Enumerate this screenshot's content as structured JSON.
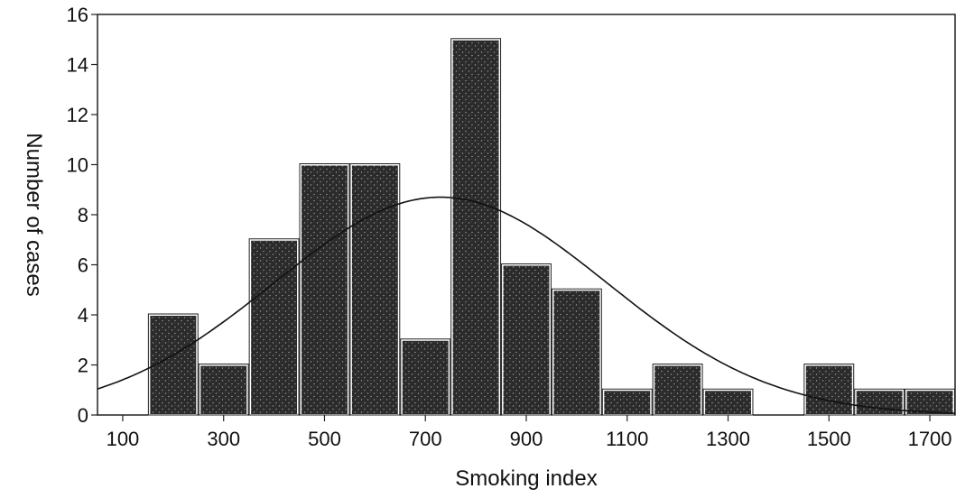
{
  "chart_data": {
    "type": "bar",
    "xlabel": "Smoking index",
    "ylabel": "Number of cases",
    "xlim": [
      50,
      1750
    ],
    "ylim": [
      0,
      16
    ],
    "x_ticks": [
      100,
      300,
      500,
      700,
      900,
      1100,
      1300,
      1500,
      1700
    ],
    "y_ticks": [
      0,
      2,
      4,
      6,
      8,
      10,
      12,
      14,
      16
    ],
    "bin_width": 100,
    "bins": [
      {
        "x0": 150,
        "x1": 250,
        "value": 4
      },
      {
        "x0": 250,
        "x1": 350,
        "value": 2
      },
      {
        "x0": 350,
        "x1": 450,
        "value": 7
      },
      {
        "x0": 450,
        "x1": 550,
        "value": 10
      },
      {
        "x0": 550,
        "x1": 650,
        "value": 10
      },
      {
        "x0": 650,
        "x1": 750,
        "value": 3
      },
      {
        "x0": 750,
        "x1": 850,
        "value": 15
      },
      {
        "x0": 850,
        "x1": 950,
        "value": 6
      },
      {
        "x0": 950,
        "x1": 1050,
        "value": 5
      },
      {
        "x0": 1050,
        "x1": 1150,
        "value": 1
      },
      {
        "x0": 1150,
        "x1": 1250,
        "value": 2
      },
      {
        "x0": 1250,
        "x1": 1350,
        "value": 1
      },
      {
        "x0": 1350,
        "x1": 1450,
        "value": 0
      },
      {
        "x0": 1450,
        "x1": 1550,
        "value": 2
      },
      {
        "x0": 1550,
        "x1": 1650,
        "value": 1
      },
      {
        "x0": 1650,
        "x1": 1750,
        "value": 1
      }
    ],
    "normal_curve": {
      "mean": 730,
      "sd": 330,
      "peak": 8.7
    },
    "bar_color": "#333333",
    "grid": false
  }
}
